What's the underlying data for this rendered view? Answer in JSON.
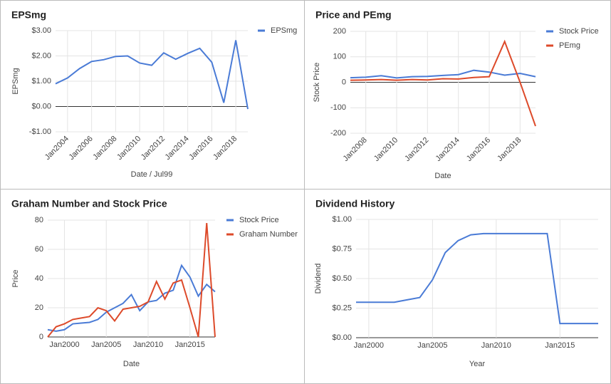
{
  "chart_data": [
    {
      "type": "line",
      "title": "EPSmg",
      "x_label": "Date / Jul99",
      "y_label": "EPSmg",
      "legend": "right",
      "grid": true,
      "x": [
        2003,
        2004,
        2005,
        2006,
        2007,
        2008,
        2009,
        2010,
        2011,
        2012,
        2013,
        2014,
        2015,
        2016,
        2017,
        2018,
        2019
      ],
      "series": [
        {
          "name": "EPSmg",
          "color": "#4a7bd6",
          "values": [
            0.9,
            1.13,
            1.5,
            1.78,
            1.85,
            1.98,
            2.0,
            1.72,
            1.63,
            2.12,
            1.87,
            2.1,
            2.3,
            1.75,
            0.15,
            2.62,
            -0.1
          ]
        }
      ],
      "xlim": [
        2003,
        2019
      ],
      "ylim": [
        -1,
        3
      ],
      "xticks": [
        {
          "value": 2004,
          "label": "Jan2004"
        },
        {
          "value": 2006,
          "label": "Jan2006"
        },
        {
          "value": 2008,
          "label": "Jan2008"
        },
        {
          "value": 2010,
          "label": "Jan2010"
        },
        {
          "value": 2012,
          "label": "Jan2012"
        },
        {
          "value": 2014,
          "label": "Jan2014"
        },
        {
          "value": 2016,
          "label": "Jan2016"
        },
        {
          "value": 2018,
          "label": "Jan2018"
        }
      ],
      "yticks": [
        {
          "value": -1,
          "label": "-$1.00"
        },
        {
          "value": 0,
          "label": "$0.00"
        },
        {
          "value": 1,
          "label": "$1.00"
        },
        {
          "value": 2,
          "label": "$2.00"
        },
        {
          "value": 3,
          "label": "$3.00"
        }
      ]
    },
    {
      "type": "line",
      "title": "Price and PEmg",
      "x_label": "Date",
      "y_label": "Stock Price",
      "legend": "right",
      "grid": true,
      "x": [
        2007,
        2008,
        2009,
        2010,
        2011,
        2012,
        2013,
        2014,
        2015,
        2016,
        2017,
        2018,
        2019
      ],
      "series": [
        {
          "name": "Stock Price",
          "color": "#4a7bd6",
          "values": [
            18,
            20,
            26,
            17,
            22,
            23,
            27,
            30,
            47,
            40,
            28,
            35,
            22
          ]
        },
        {
          "name": "PEmg",
          "color": "#dd4a2a",
          "values": [
            8,
            9,
            11,
            8,
            11,
            9,
            14,
            13,
            19,
            22,
            160,
            0,
            -172
          ]
        }
      ],
      "xlim": [
        2007,
        2019
      ],
      "ylim": [
        -200,
        200
      ],
      "xticks": [
        {
          "value": 2008,
          "label": "Jan2008"
        },
        {
          "value": 2010,
          "label": "Jan2010"
        },
        {
          "value": 2012,
          "label": "Jan2012"
        },
        {
          "value": 2014,
          "label": "Jan2014"
        },
        {
          "value": 2016,
          "label": "Jan2016"
        },
        {
          "value": 2018,
          "label": "Jan2018"
        }
      ],
      "yticks": [
        -200,
        -100,
        0,
        100,
        200
      ]
    },
    {
      "type": "line",
      "title": "Graham Number and Stock Price",
      "x_label": "Date",
      "y_label": "Price",
      "legend": "right",
      "grid": true,
      "x": [
        1998,
        1999,
        2000,
        2001,
        2002,
        2003,
        2004,
        2005,
        2006,
        2007,
        2008,
        2009,
        2010,
        2011,
        2012,
        2013,
        2014,
        2015,
        2016,
        2017,
        2018
      ],
      "series": [
        {
          "name": "Stock Price",
          "color": "#4a7bd6",
          "values": [
            5,
            4,
            5,
            9,
            9.5,
            10,
            12,
            17,
            20,
            23,
            29,
            18,
            24,
            25,
            30,
            32,
            49,
            41,
            28,
            36,
            31
          ]
        },
        {
          "name": "Graham Number",
          "color": "#dd4a2a",
          "values": [
            0,
            7,
            9,
            12,
            13,
            14,
            20,
            18,
            11,
            19,
            20,
            21,
            24,
            38,
            26,
            37,
            39,
            20,
            0,
            78,
            0
          ]
        }
      ],
      "xlim": [
        1998,
        2018
      ],
      "ylim": [
        0,
        80
      ],
      "xticks": [
        {
          "value": 2000,
          "label": "Jan2000"
        },
        {
          "value": 2005,
          "label": "Jan2005"
        },
        {
          "value": 2010,
          "label": "Jan2010"
        },
        {
          "value": 2015,
          "label": "Jan2015"
        }
      ],
      "yticks": [
        0,
        20,
        40,
        60,
        80
      ]
    },
    {
      "type": "line",
      "title": "Dividend History",
      "x_label": "Year",
      "y_label": "Dividend",
      "legend": "none",
      "grid": true,
      "x": [
        1999,
        2000,
        2001,
        2002,
        2003,
        2004,
        2005,
        2006,
        2007,
        2008,
        2009,
        2010,
        2011,
        2012,
        2013,
        2014,
        2015,
        2016,
        2017,
        2018
      ],
      "series": [
        {
          "name": "Dividend",
          "color": "#4a7bd6",
          "values": [
            0.3,
            0.3,
            0.3,
            0.3,
            0.32,
            0.34,
            0.49,
            0.72,
            0.82,
            0.87,
            0.88,
            0.88,
            0.88,
            0.88,
            0.88,
            0.88,
            0.12,
            0.12,
            0.12,
            0.12
          ]
        }
      ],
      "xlim": [
        1999,
        2018
      ],
      "ylim": [
        0,
        1
      ],
      "xticks": [
        {
          "value": 2000,
          "label": "Jan2000"
        },
        {
          "value": 2005,
          "label": "Jan2005"
        },
        {
          "value": 2010,
          "label": "Jan2010"
        },
        {
          "value": 2015,
          "label": "Jan2015"
        }
      ],
      "yticks": [
        {
          "value": 0,
          "label": "$0.00"
        },
        {
          "value": 0.25,
          "label": "$0.25"
        },
        {
          "value": 0.5,
          "label": "$0.50"
        },
        {
          "value": 0.75,
          "label": "$0.75"
        },
        {
          "value": 1,
          "label": "$1.00"
        }
      ]
    }
  ]
}
